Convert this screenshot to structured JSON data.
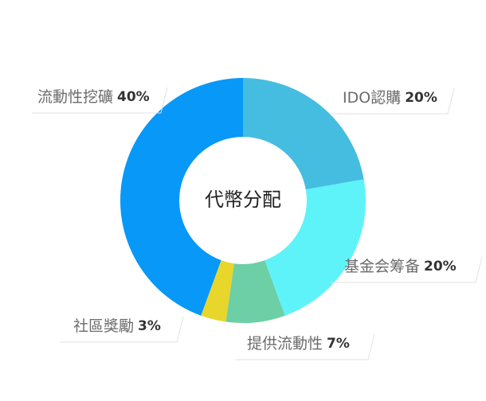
{
  "chart_data": {
    "type": "pie",
    "title": "代幣分配",
    "categories": [
      "IDO認購",
      "基金会筹备",
      "提供流動性",
      "社區獎勵",
      "流動性挖礦"
    ],
    "values": [
      20,
      20,
      7,
      3,
      40
    ],
    "value_labels": [
      "20%",
      "20%",
      "7%",
      "3%",
      "40%"
    ],
    "colors": [
      "#45bde0",
      "#5ef3f8",
      "#6ccfa6",
      "#e8d62a",
      "#0798f8"
    ]
  }
}
